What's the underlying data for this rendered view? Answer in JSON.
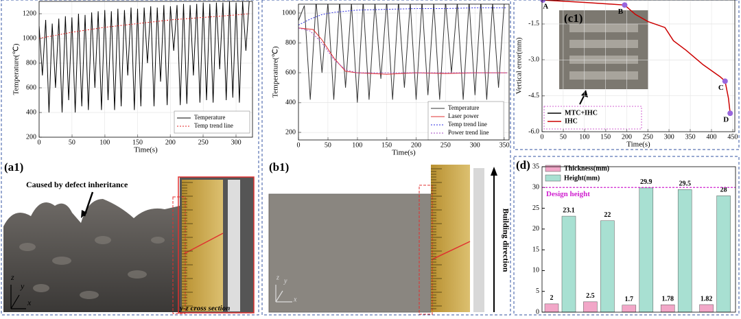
{
  "panels": {
    "a1": "(a1)",
    "b1": "(b1)",
    "c1": "(c1)",
    "d": "(d)"
  },
  "annotations": {
    "defect": "Caused by defect inheritance",
    "cross_section": "y-z cross section",
    "building": "Building direction",
    "axes_a": {
      "z": "z",
      "y": "y",
      "x": "x"
    },
    "axes_b": {
      "z": "z",
      "y": "y",
      "x": "x"
    }
  },
  "chart_data": [
    {
      "type": "line",
      "xlabel": "Time(s)",
      "ylabel": "Temperature(℃)",
      "xlim": [
        0,
        325
      ],
      "ylim": [
        200,
        1300
      ],
      "xticks": [
        0,
        50,
        100,
        150,
        200,
        250,
        300
      ],
      "yticks": [
        200,
        400,
        600,
        800,
        1000,
        1200
      ],
      "grid": true,
      "series": [
        {
          "name": "Temperature",
          "color": "#000000",
          "dash": false,
          "x": [
            0,
            5,
            10,
            15,
            20,
            25,
            30,
            35,
            40,
            45,
            50,
            55,
            60,
            65,
            70,
            75,
            80,
            85,
            90,
            95,
            100,
            105,
            110,
            115,
            120,
            125,
            130,
            135,
            140,
            145,
            150,
            155,
            160,
            165,
            170,
            175,
            180,
            185,
            190,
            195,
            200,
            205,
            210,
            215,
            220,
            225,
            230,
            235,
            240,
            245,
            250,
            255,
            260,
            265,
            270,
            275,
            280,
            285,
            290,
            295,
            300,
            305,
            310,
            315,
            320
          ],
          "values": [
            1100,
            700,
            1150,
            400,
            1120,
            600,
            1160,
            400,
            1180,
            500,
            1170,
            400,
            1200,
            450,
            1190,
            420,
            1210,
            600,
            1220,
            420,
            1230,
            500,
            1220,
            420,
            1240,
            450,
            1230,
            700,
            1250,
            420,
            1240,
            450,
            1250,
            800,
            1260,
            450,
            1250,
            650,
            1270,
            460,
            1260,
            900,
            1270,
            460,
            1280,
            470,
            1270,
            700,
            1280,
            480,
            1290,
            500,
            1280,
            480,
            1290,
            750,
            1290,
            500,
            1300,
            520,
            1290,
            480,
            1300,
            900,
            1300
          ]
        },
        {
          "name": "Temp trend line",
          "color": "#e02020",
          "dash": true,
          "x": [
            0,
            50,
            100,
            150,
            200,
            250,
            300,
            320
          ],
          "values": [
            1000,
            1050,
            1090,
            1120,
            1150,
            1170,
            1190,
            1200
          ]
        }
      ]
    },
    {
      "type": "line",
      "xlabel": "Time(s)",
      "ylabel": "Temperature(℃)",
      "xlim": [
        0,
        358
      ],
      "ylim": [
        150,
        1060
      ],
      "xticks": [
        0,
        50,
        100,
        150,
        200,
        250,
        300,
        350
      ],
      "yticks": [
        200,
        400,
        600,
        800,
        1000
      ],
      "grid": true,
      "series": [
        {
          "name": "Temperature",
          "color": "#333333",
          "dash": false,
          "x": [
            0,
            10,
            20,
            30,
            40,
            50,
            60,
            70,
            80,
            90,
            100,
            110,
            120,
            130,
            140,
            150,
            160,
            170,
            180,
            190,
            200,
            210,
            220,
            230,
            240,
            250,
            260,
            270,
            280,
            290,
            300,
            310,
            320,
            330,
            340,
            350
          ],
          "values": [
            950,
            1050,
            420,
            1080,
            600,
            1070,
            420,
            1080,
            500,
            1070,
            400,
            1080,
            420,
            1070,
            560,
            1080,
            420,
            1080,
            500,
            1070,
            420,
            1080,
            450,
            1070,
            420,
            1080,
            600,
            1070,
            420,
            1080,
            450,
            1080,
            420,
            1070,
            500,
            1080
          ]
        },
        {
          "name": "Laser power",
          "color": "#e03030",
          "dash": false,
          "x": [
            0,
            25,
            40,
            60,
            80,
            100,
            150,
            200,
            250,
            300,
            355
          ],
          "values": [
            900,
            890,
            820,
            700,
            610,
            600,
            590,
            600,
            595,
            600,
            600
          ]
        },
        {
          "name": "Temp trend line",
          "color": "#2a2ae0",
          "dash": true,
          "x": [
            0,
            20,
            40,
            60,
            100,
            150,
            200,
            250,
            300,
            355
          ],
          "values": [
            920,
            960,
            990,
            1005,
            1020,
            1025,
            1030,
            1030,
            1035,
            1035
          ]
        },
        {
          "name": "Power trend line",
          "color": "#a040c0",
          "dash": true,
          "x": [
            0,
            20,
            40,
            60,
            80,
            100,
            200,
            355
          ],
          "values": [
            900,
            880,
            800,
            690,
            620,
            600,
            600,
            600
          ]
        }
      ]
    },
    {
      "type": "line",
      "xlabel": "Time(s)",
      "ylabel": "Vertical error(mm)",
      "xlim": [
        0,
        455
      ],
      "ylim": [
        -6.0,
        -0.5
      ],
      "xticks": [
        0,
        50,
        100,
        150,
        200,
        250,
        300,
        350,
        400,
        450
      ],
      "yticks": [
        {
          "value": -1.5,
          "label": "-1.5"
        },
        {
          "value": -3.0,
          "label": "-3.0"
        },
        {
          "value": -4.5,
          "label": "-4.5"
        },
        {
          "value": -6.0,
          "label": "-6.0"
        }
      ],
      "grid": true,
      "series": [
        {
          "name": "IHC",
          "color": "#cc0000",
          "dash": false,
          "x": [
            0,
            100,
            195,
            220,
            250,
            290,
            310,
            340,
            380,
            420,
            432,
            440,
            444
          ],
          "values": [
            -0.5,
            -0.6,
            -0.71,
            -1.1,
            -1.4,
            -1.65,
            -2.2,
            -2.6,
            -3.2,
            -3.7,
            -3.89,
            -4.6,
            -5.23
          ]
        }
      ],
      "legend": [
        {
          "name": "MTC+IHC",
          "color": "#000000"
        },
        {
          "name": "IHC",
          "color": "#cc0000"
        }
      ],
      "points": [
        {
          "label": "A",
          "x": 2,
          "y": -0.5
        },
        {
          "label": "B",
          "x": 195,
          "y": -0.71
        },
        {
          "label": "C",
          "x": 432,
          "y": -3.89
        },
        {
          "label": "D",
          "x": 444,
          "y": -5.23
        }
      ],
      "marker_color": "#9966dd"
    },
    {
      "type": "bar",
      "categories": [
        null,
        null,
        null,
        null,
        null
      ],
      "ylim": [
        0,
        35
      ],
      "yticks": [
        0,
        5,
        10,
        15,
        20,
        25,
        30,
        35
      ],
      "grid": false,
      "series": [
        {
          "name": "Thickness(mm)",
          "color": "#f2a7c8",
          "values": [
            2,
            2.5,
            1.7,
            1.78,
            1.82
          ]
        },
        {
          "name": "Height(mm)",
          "color": "#a8e0d2",
          "values": [
            23.1,
            22,
            29.9,
            29.5,
            28
          ]
        }
      ],
      "reference": {
        "label": "Design height",
        "value": 30,
        "color": "#d020d0"
      }
    }
  ]
}
